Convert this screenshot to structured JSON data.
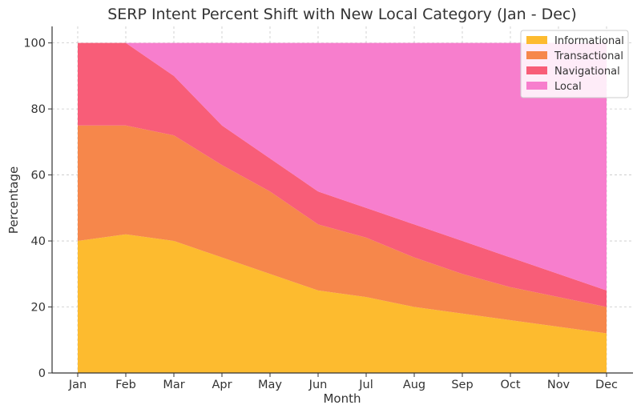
{
  "chart_data": {
    "type": "area",
    "stacked": true,
    "title": "SERP Intent Percent Shift with New Local Category (Jan - Dec)",
    "xlabel": "Month",
    "ylabel": "Percentage",
    "categories": [
      "Jan",
      "Feb",
      "Mar",
      "Apr",
      "May",
      "Jun",
      "Jul",
      "Aug",
      "Sep",
      "Oct",
      "Nov",
      "Dec"
    ],
    "ylim": [
      0,
      105
    ],
    "yticks": [
      0,
      20,
      40,
      60,
      80,
      100
    ],
    "grid": true,
    "legend_position": "top-right",
    "series": [
      {
        "name": "Informational",
        "color": "#fdbb2f",
        "values": [
          40,
          42,
          40,
          35,
          30,
          25,
          23,
          20,
          18,
          16,
          14,
          12
        ]
      },
      {
        "name": "Transactional",
        "color": "#f6874b",
        "values": [
          35,
          33,
          32,
          28,
          25,
          20,
          18,
          15,
          12,
          10,
          9,
          8
        ]
      },
      {
        "name": "Navigational",
        "color": "#f85d78",
        "values": [
          25,
          25,
          18,
          12,
          10,
          10,
          9,
          10,
          10,
          9,
          7,
          5
        ]
      },
      {
        "name": "Local",
        "color": "#f77ecd",
        "values": [
          0,
          0,
          10,
          25,
          35,
          45,
          50,
          55,
          60,
          65,
          70,
          75
        ]
      }
    ]
  }
}
